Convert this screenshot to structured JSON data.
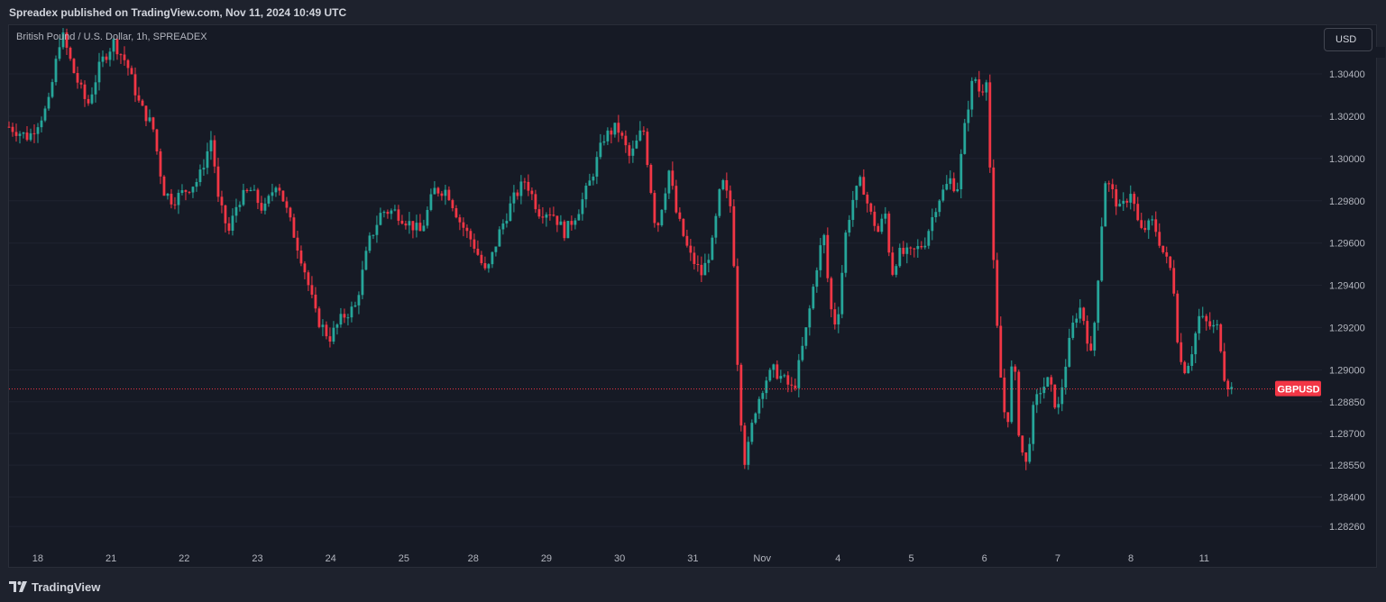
{
  "header": {
    "published_line": "Spreadex published on TradingView.com, Nov 11, 2024 10:49 UTC"
  },
  "toolbar": {
    "currency_button": "USD"
  },
  "footer": {
    "brand": "TradingView",
    "logo_icon": "tradingview-logo-icon"
  },
  "colors": {
    "up": "#26a69a",
    "down": "#f23645",
    "background": "#161a25",
    "last_price_line": "#f23645"
  },
  "chart_data": {
    "type": "candlestick",
    "title": "British Pound / U.S. Dollar, 1h, SPREADEX",
    "symbol_badge": "GBPUSD",
    "last_price": 1.2891,
    "ylim": [
      1.2818,
      1.3063
    ],
    "xlim": [
      0,
      100
    ],
    "y_ticks": [
      {
        "value": 1.304,
        "label": "1.30400"
      },
      {
        "value": 1.302,
        "label": "1.30200"
      },
      {
        "value": 1.3,
        "label": "1.30000"
      },
      {
        "value": 1.298,
        "label": "1.29800"
      },
      {
        "value": 1.296,
        "label": "1.29600"
      },
      {
        "value": 1.294,
        "label": "1.29400"
      },
      {
        "value": 1.292,
        "label": "1.29200"
      },
      {
        "value": 1.29,
        "label": "1.29000"
      },
      {
        "value": 1.2885,
        "label": "1.28850"
      },
      {
        "value": 1.287,
        "label": "1.28700"
      },
      {
        "value": 1.2855,
        "label": "1.28550"
      },
      {
        "value": 1.284,
        "label": "1.28400"
      },
      {
        "value": 1.2826,
        "label": "1.28260"
      }
    ],
    "x_ticks": [
      {
        "x": 2.2,
        "label": "18"
      },
      {
        "x": 7.8,
        "label": "21"
      },
      {
        "x": 13.4,
        "label": "22"
      },
      {
        "x": 19.0,
        "label": "23"
      },
      {
        "x": 24.6,
        "label": "24"
      },
      {
        "x": 30.2,
        "label": "25"
      },
      {
        "x": 35.5,
        "label": "28"
      },
      {
        "x": 41.1,
        "label": "29"
      },
      {
        "x": 46.7,
        "label": "30"
      },
      {
        "x": 52.3,
        "label": "31"
      },
      {
        "x": 57.6,
        "label": "Nov"
      },
      {
        "x": 63.4,
        "label": "4"
      },
      {
        "x": 69.0,
        "label": "5"
      },
      {
        "x": 74.6,
        "label": "6"
      },
      {
        "x": 80.2,
        "label": "7"
      },
      {
        "x": 85.8,
        "label": "8"
      },
      {
        "x": 91.4,
        "label": "11"
      }
    ],
    "path": [
      [
        0,
        1.3015
      ],
      [
        1.5,
        1.301
      ],
      [
        3.0,
        1.3025
      ],
      [
        4.0,
        1.306
      ],
      [
        5.0,
        1.304
      ],
      [
        6.0,
        1.3025
      ],
      [
        7.0,
        1.3045
      ],
      [
        8.0,
        1.3055
      ],
      [
        9.0,
        1.3045
      ],
      [
        10.0,
        1.3025
      ],
      [
        11.0,
        1.3015
      ],
      [
        11.8,
        1.2985
      ],
      [
        12.5,
        1.298
      ],
      [
        13.5,
        1.2985
      ],
      [
        14.5,
        1.299
      ],
      [
        15.5,
        1.301
      ],
      [
        16.0,
        1.298
      ],
      [
        16.8,
        1.2965
      ],
      [
        17.5,
        1.298
      ],
      [
        18.5,
        1.2985
      ],
      [
        19.5,
        1.2975
      ],
      [
        20.5,
        1.299
      ],
      [
        21.5,
        1.297
      ],
      [
        22.5,
        1.295
      ],
      [
        23.5,
        1.2925
      ],
      [
        24.5,
        1.2915
      ],
      [
        25.5,
        1.2925
      ],
      [
        26.5,
        1.293
      ],
      [
        27.5,
        1.296
      ],
      [
        28.5,
        1.2975
      ],
      [
        29.5,
        1.2975
      ],
      [
        30.5,
        1.297
      ],
      [
        31.5,
        1.2965
      ],
      [
        32.5,
        1.2985
      ],
      [
        33.5,
        1.2985
      ],
      [
        34.5,
        1.297
      ],
      [
        35.5,
        1.296
      ],
      [
        36.5,
        1.2945
      ],
      [
        37.5,
        1.2965
      ],
      [
        38.5,
        1.298
      ],
      [
        39.5,
        1.299
      ],
      [
        40.5,
        1.2975
      ],
      [
        41.5,
        1.2975
      ],
      [
        42.5,
        1.2965
      ],
      [
        43.5,
        1.2975
      ],
      [
        44.5,
        1.299
      ],
      [
        45.5,
        1.301
      ],
      [
        46.5,
        1.3015
      ],
      [
        47.5,
        1.3
      ],
      [
        48.5,
        1.3015
      ],
      [
        49.0,
        1.299
      ],
      [
        49.5,
        1.2965
      ],
      [
        50.5,
        1.2995
      ],
      [
        51.0,
        1.2975
      ],
      [
        52.0,
        1.2955
      ],
      [
        53.0,
        1.2945
      ],
      [
        53.8,
        1.296
      ],
      [
        54.5,
        1.299
      ],
      [
        55.3,
        1.2975
      ],
      [
        55.8,
        1.289
      ],
      [
        56.3,
        1.2855
      ],
      [
        57.0,
        1.288
      ],
      [
        57.8,
        1.2895
      ],
      [
        58.5,
        1.29
      ],
      [
        59.3,
        1.2895
      ],
      [
        60.0,
        1.289
      ],
      [
        61.0,
        1.292
      ],
      [
        61.8,
        1.295
      ],
      [
        62.3,
        1.2965
      ],
      [
        62.8,
        1.293
      ],
      [
        63.3,
        1.292
      ],
      [
        64.0,
        1.2965
      ],
      [
        64.5,
        1.298
      ],
      [
        65.2,
        1.299
      ],
      [
        65.8,
        1.2975
      ],
      [
        66.5,
        1.2965
      ],
      [
        67.0,
        1.2975
      ],
      [
        67.5,
        1.2945
      ],
      [
        68.0,
        1.2955
      ],
      [
        69.0,
        1.2955
      ],
      [
        70.0,
        1.296
      ],
      [
        71.0,
        1.298
      ],
      [
        72.0,
        1.299
      ],
      [
        72.5,
        1.2985
      ],
      [
        73.2,
        1.302
      ],
      [
        73.8,
        1.304
      ],
      [
        74.3,
        1.303
      ],
      [
        74.8,
        1.304
      ],
      [
        75.2,
        1.296
      ],
      [
        75.7,
        1.2905
      ],
      [
        76.3,
        1.287
      ],
      [
        76.8,
        1.291
      ],
      [
        77.3,
        1.2865
      ],
      [
        77.8,
        1.2855
      ],
      [
        78.3,
        1.288
      ],
      [
        78.8,
        1.289
      ],
      [
        79.5,
        1.2895
      ],
      [
        80.2,
        1.288
      ],
      [
        81.0,
        1.291
      ],
      [
        81.5,
        1.2925
      ],
      [
        82.0,
        1.293
      ],
      [
        82.8,
        1.2905
      ],
      [
        83.3,
        1.2945
      ],
      [
        83.8,
        1.299
      ],
      [
        84.3,
        1.2985
      ],
      [
        85.0,
        1.2975
      ],
      [
        85.8,
        1.2985
      ],
      [
        86.5,
        1.2965
      ],
      [
        87.5,
        1.297
      ],
      [
        88.3,
        1.2955
      ],
      [
        89.0,
        1.2945
      ],
      [
        89.5,
        1.2905
      ],
      [
        90.0,
        1.29
      ],
      [
        90.5,
        1.291
      ],
      [
        91.0,
        1.2925
      ],
      [
        92.0,
        1.292
      ],
      [
        92.5,
        1.292
      ],
      [
        93.0,
        1.2895
      ],
      [
        93.5,
        1.2891
      ]
    ]
  }
}
